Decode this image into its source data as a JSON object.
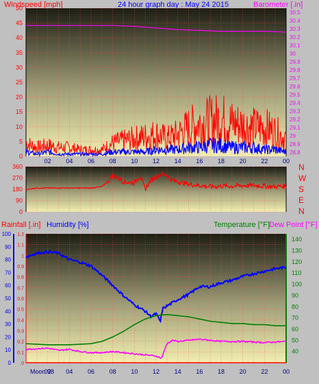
{
  "chart_data": [
    {
      "type": "line",
      "title": "24 hour graph day : May 24 2015",
      "left_label": "Windspeed [mph]",
      "right_label": "Barometer [.in]",
      "left_ticks": [
        "0",
        "5",
        "10",
        "15",
        "20",
        "25",
        "30",
        "35",
        "40",
        "45",
        "50"
      ],
      "right_ticks": [
        "28.8",
        "28.9",
        "29",
        "29.1",
        "29.2",
        "29.3",
        "29.4",
        "29.5",
        "29.6",
        "29.7",
        "29.8",
        "29.9",
        "30",
        "30.1",
        "30.2",
        "30.3",
        "30.4",
        "30.5"
      ],
      "x_ticks": [
        "02",
        "04",
        "06",
        "08",
        "10",
        "12",
        "14",
        "16",
        "18",
        "20",
        "22",
        "00"
      ],
      "ylim_left": [
        0,
        50
      ],
      "ylim_right": [
        28.75,
        30.55
      ],
      "series": [
        {
          "name": "Windspeed",
          "axis": "left",
          "color": "#ff0000",
          "x": [
            0,
            1,
            2,
            3,
            4,
            5,
            6,
            7,
            8,
            9,
            10,
            11,
            12,
            13,
            14,
            15,
            16,
            17,
            18,
            19,
            20,
            21,
            22,
            23,
            24
          ],
          "values": [
            6,
            4,
            5,
            4,
            4,
            3,
            3,
            3,
            6,
            7,
            8,
            9,
            10,
            8,
            10,
            13,
            15,
            16,
            17,
            15,
            14,
            13,
            13,
            11,
            8
          ]
        },
        {
          "name": "Gust",
          "axis": "left",
          "color": "#0000ff",
          "x": [
            0,
            1,
            2,
            3,
            4,
            5,
            6,
            7,
            8,
            9,
            10,
            11,
            12,
            13,
            14,
            15,
            16,
            17,
            18,
            19,
            20,
            21,
            22,
            23,
            24
          ],
          "values": [
            2,
            1,
            2,
            1,
            1,
            1,
            1,
            1,
            2,
            2,
            2,
            2,
            3,
            3,
            3,
            4,
            4,
            5,
            5,
            4,
            4,
            4,
            3,
            3,
            2
          ]
        },
        {
          "name": "Barometer",
          "axis": "right",
          "color": "#ff00ff",
          "x": [
            0,
            2,
            4,
            6,
            8,
            10,
            12,
            14,
            16,
            18,
            20,
            22,
            24
          ],
          "values": [
            30.34,
            30.34,
            30.34,
            30.34,
            30.34,
            30.33,
            30.31,
            30.29,
            30.28,
            30.27,
            30.27,
            30.27,
            30.26
          ]
        }
      ]
    },
    {
      "type": "line",
      "title": "",
      "left_ticks": [
        "0",
        "90",
        "180",
        "270",
        "360"
      ],
      "right_labels": [
        "N",
        "W",
        "S",
        "E",
        "N"
      ],
      "ylim": [
        0,
        360
      ],
      "series": [
        {
          "name": "Wind direction",
          "color": "#ff0000",
          "x": [
            0,
            0.5,
            1,
            1.5,
            2,
            3,
            4,
            5,
            6,
            7,
            7.5,
            8,
            8.5,
            9,
            10,
            10.5,
            11,
            11.5,
            12,
            12.5,
            13,
            13.5,
            14,
            15,
            16,
            17,
            18,
            19,
            20,
            21,
            22,
            23,
            24
          ],
          "values": [
            175,
            185,
            190,
            190,
            190,
            190,
            190,
            190,
            190,
            200,
            240,
            290,
            270,
            240,
            230,
            290,
            180,
            250,
            280,
            300,
            290,
            250,
            240,
            220,
            210,
            200,
            205,
            205,
            210,
            210,
            205,
            200,
            205
          ]
        }
      ]
    },
    {
      "type": "line",
      "title": "",
      "label_rainfall": "Rainfall [.in]",
      "label_humidity": "Humidity [%]",
      "label_temperature": "Temperature [°F]",
      "label_dewpoint": "Dew Point [°F]",
      "left_ticks_humidity": [
        "0",
        "10",
        "20",
        "30",
        "40",
        "50",
        "60",
        "70",
        "80",
        "90",
        "100"
      ],
      "left_ticks_rain": [
        "0",
        "0.1",
        "0.2",
        "0.3",
        "0.4",
        "0.5",
        "0.6",
        "0.7",
        "0.8",
        "0.9",
        "1",
        "1.1",
        "1.2"
      ],
      "right_ticks": [
        "40",
        "50",
        "60",
        "70",
        "80",
        "90",
        "100",
        "110",
        "120",
        "130",
        "140"
      ],
      "x_ticks": [
        "Moon 98",
        "02",
        "04",
        "06",
        "08",
        "10",
        "12",
        "14",
        "16",
        "18",
        "20",
        "22",
        "00"
      ],
      "ylim_humidity": [
        0,
        100
      ],
      "ylim_temp": [
        30,
        145
      ],
      "series": [
        {
          "name": "Humidity",
          "axis": "humidity",
          "color": "#0000ff",
          "x": [
            0,
            1,
            2,
            3,
            4,
            5,
            6,
            7,
            8,
            9,
            10,
            11,
            11.5,
            12,
            12.4,
            12.6,
            13,
            14,
            15,
            16,
            17,
            18,
            19,
            20,
            21,
            22,
            23,
            24
          ],
          "values": [
            82,
            85,
            86,
            85,
            80,
            78,
            75,
            68,
            60,
            52,
            45,
            40,
            36,
            38,
            32,
            42,
            44,
            49,
            53,
            59,
            59,
            62,
            64,
            67,
            69,
            71,
            73,
            74
          ]
        },
        {
          "name": "Temperature",
          "axis": "temp",
          "color": "#008000",
          "x": [
            0,
            2,
            4,
            6,
            7,
            8,
            9,
            10,
            11,
            12,
            13,
            14,
            15,
            16,
            17,
            18,
            19,
            20,
            21,
            22,
            23,
            24
          ],
          "values": [
            47,
            46,
            46,
            47,
            49,
            53,
            58,
            64,
            69,
            72,
            73,
            72,
            71,
            69,
            67,
            66,
            65,
            65,
            64,
            64,
            63,
            63
          ]
        },
        {
          "name": "Dew Point",
          "axis": "temp",
          "color": "#ff00ff",
          "x": [
            0,
            2,
            3,
            4,
            5,
            6,
            7,
            8,
            9,
            10,
            11,
            12,
            12.5,
            13,
            13.5,
            14,
            16,
            18,
            20,
            22,
            24
          ],
          "values": [
            42,
            43,
            41,
            42,
            40,
            39,
            39,
            40,
            39,
            38,
            37,
            36,
            34,
            47,
            50,
            49,
            51,
            49,
            49,
            48,
            49
          ]
        },
        {
          "name": "Rainfall",
          "axis": "humidity",
          "color": "#ff0000",
          "x": [
            0,
            24
          ],
          "values": [
            0,
            0
          ]
        }
      ]
    }
  ],
  "colors": {
    "frame": "#c0c0c0",
    "plot_top": "#1e1e14",
    "plot_bottom": "#f2eeb0",
    "grid": "#ff5050",
    "axis_text_left": "#ff0000",
    "axis_text_humidity": "#0000ff",
    "axis_text_temp": "#008000",
    "axis_text_baro": "#ff00ff"
  }
}
